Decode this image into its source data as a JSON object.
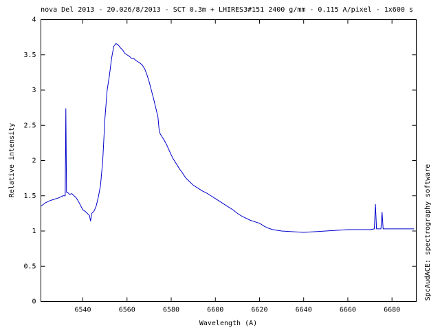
{
  "chart_data": {
    "type": "line",
    "title": "nova Del 2013 - 20.026/8/2013 - SCT 0.3m + LHIRES3#151 2400 g/mm - 0.115 A/pixel - 1x600 s",
    "x_label": "Wavelength (A)",
    "y_label": "Relative intensity",
    "annotation": "SpcAudACE: spectrography software",
    "color": "#0000cc",
    "x": [
      6521,
      6523,
      6525,
      6527,
      6529,
      6531,
      6532,
      6532.3,
      6532.6,
      6533,
      6534,
      6535,
      6536,
      6537,
      6538,
      6539,
      6540,
      6541,
      6542,
      6543,
      6543.5,
      6544,
      6545,
      6546,
      6547,
      6548,
      6549,
      6550,
      6551,
      6552,
      6553,
      6554,
      6555,
      6556,
      6557,
      6558,
      6559,
      6560,
      6561,
      6562,
      6563,
      6564,
      6565,
      6566,
      6567,
      6568,
      6569,
      6570,
      6571,
      6572,
      6573,
      6574,
      6574.5,
      6575,
      6576,
      6577,
      6578,
      6579,
      6580,
      6581,
      6582,
      6583,
      6584,
      6585,
      6586,
      6587,
      6588,
      6589,
      6590,
      6592,
      6594,
      6596,
      6598,
      6600,
      6602,
      6604,
      6606,
      6608,
      6610,
      6612,
      6614,
      6616,
      6618,
      6620,
      6622,
      6624,
      6626,
      6628,
      6630,
      6635,
      6640,
      6645,
      6650,
      6655,
      6660,
      6665,
      6670,
      6672,
      6672.5,
      6673,
      6675,
      6675.5,
      6676,
      6680,
      6685,
      6690
    ],
    "values": [
      1.35,
      1.4,
      1.43,
      1.45,
      1.47,
      1.5,
      1.5,
      2.74,
      1.55,
      1.55,
      1.52,
      1.53,
      1.5,
      1.47,
      1.42,
      1.36,
      1.3,
      1.28,
      1.25,
      1.22,
      1.14,
      1.25,
      1.28,
      1.35,
      1.48,
      1.65,
      2.0,
      2.6,
      3.0,
      3.2,
      3.45,
      3.62,
      3.66,
      3.64,
      3.6,
      3.57,
      3.52,
      3.5,
      3.48,
      3.45,
      3.45,
      3.42,
      3.4,
      3.38,
      3.35,
      3.3,
      3.22,
      3.12,
      3.0,
      2.88,
      2.75,
      2.62,
      2.45,
      2.38,
      2.33,
      2.28,
      2.22,
      2.15,
      2.08,
      2.02,
      1.97,
      1.92,
      1.87,
      1.83,
      1.78,
      1.74,
      1.71,
      1.68,
      1.65,
      1.61,
      1.57,
      1.54,
      1.5,
      1.46,
      1.42,
      1.38,
      1.34,
      1.3,
      1.25,
      1.21,
      1.18,
      1.15,
      1.13,
      1.11,
      1.07,
      1.04,
      1.02,
      1.01,
      1.0,
      0.99,
      0.98,
      0.99,
      1.0,
      1.01,
      1.02,
      1.02,
      1.02,
      1.03,
      1.38,
      1.03,
      1.03,
      1.27,
      1.03,
      1.03,
      1.03,
      1.03
    ],
    "xlim": [
      6521,
      6691
    ],
    "ylim": [
      0,
      4
    ],
    "xticks": [
      6540,
      6560,
      6580,
      6600,
      6620,
      6640,
      6660,
      6680
    ],
    "yticks": [
      0,
      0.5,
      1,
      1.5,
      2,
      2.5,
      3,
      3.5,
      4
    ],
    "grid": false
  }
}
